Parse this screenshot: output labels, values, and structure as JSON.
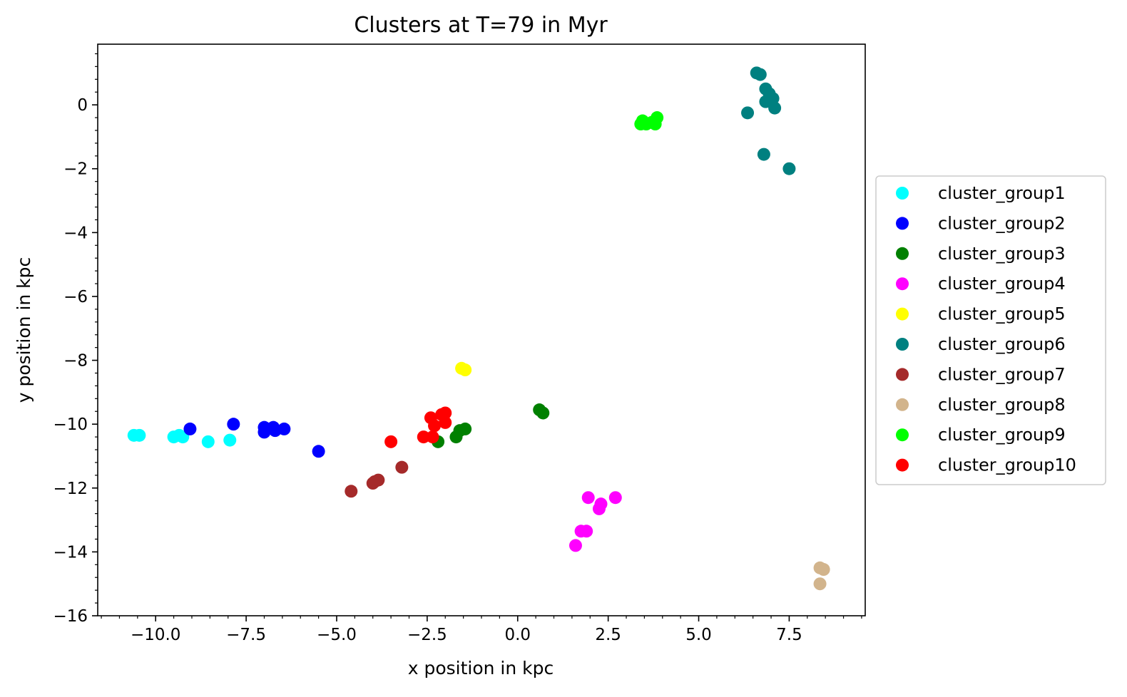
{
  "chart_data": {
    "type": "scatter",
    "title": "Clusters at T=79 in Myr",
    "xlabel": "x position in kpc",
    "ylabel": "y position in kpc",
    "xlim": [
      -11.6,
      9.6
    ],
    "ylim": [
      -16,
      1.9
    ],
    "x_ticks": [
      -10.0,
      -7.5,
      -5.0,
      -2.5,
      0.0,
      2.5,
      5.0,
      7.5
    ],
    "x_tick_labels": [
      "−10.0",
      "−7.5",
      "−5.0",
      "−2.5",
      "0.0",
      "2.5",
      "5.0",
      "7.5"
    ],
    "y_ticks": [
      0,
      -2,
      -4,
      -6,
      -8,
      -10,
      -12,
      -14,
      -16
    ],
    "y_tick_labels": [
      "0",
      "−2",
      "−4",
      "−6",
      "−8",
      "−10",
      "−12",
      "−14",
      "−16"
    ],
    "grid": false,
    "legend_position": "center right, outside plot",
    "series": [
      {
        "name": "cluster_group1",
        "color": "#00ffff",
        "points": [
          [
            -10.6,
            -10.35
          ],
          [
            -10.45,
            -10.35
          ],
          [
            -9.5,
            -10.4
          ],
          [
            -9.35,
            -10.35
          ],
          [
            -9.25,
            -10.4
          ],
          [
            -8.55,
            -10.55
          ],
          [
            -7.95,
            -10.5
          ]
        ]
      },
      {
        "name": "cluster_group2",
        "color": "#0000ff",
        "points": [
          [
            -9.05,
            -10.15
          ],
          [
            -7.85,
            -10.0
          ],
          [
            -7.0,
            -10.1
          ],
          [
            -7.0,
            -10.25
          ],
          [
            -6.75,
            -10.1
          ],
          [
            -6.7,
            -10.2
          ],
          [
            -6.45,
            -10.15
          ],
          [
            -5.5,
            -10.85
          ]
        ]
      },
      {
        "name": "cluster_group3",
        "color": "#008000",
        "points": [
          [
            -2.2,
            -10.55
          ],
          [
            -1.7,
            -10.4
          ],
          [
            -1.6,
            -10.2
          ],
          [
            -1.45,
            -10.15
          ],
          [
            0.6,
            -9.55
          ],
          [
            0.7,
            -9.65
          ]
        ]
      },
      {
        "name": "cluster_group4",
        "color": "#ff00ff",
        "points": [
          [
            1.95,
            -12.3
          ],
          [
            2.7,
            -12.3
          ],
          [
            2.3,
            -12.5
          ],
          [
            2.25,
            -12.65
          ],
          [
            1.9,
            -13.35
          ],
          [
            1.75,
            -13.35
          ],
          [
            1.6,
            -13.8
          ]
        ]
      },
      {
        "name": "cluster_group5",
        "color": "#ffff00",
        "points": [
          [
            -1.55,
            -8.25
          ],
          [
            -1.45,
            -8.3
          ]
        ]
      },
      {
        "name": "cluster_group6",
        "color": "#008080",
        "points": [
          [
            6.6,
            1.0
          ],
          [
            6.7,
            0.95
          ],
          [
            6.85,
            0.5
          ],
          [
            6.95,
            0.35
          ],
          [
            7.05,
            0.2
          ],
          [
            6.85,
            0.1
          ],
          [
            7.1,
            -0.1
          ],
          [
            6.35,
            -0.25
          ],
          [
            6.8,
            -1.55
          ],
          [
            7.5,
            -2.0
          ]
        ]
      },
      {
        "name": "cluster_group7",
        "color": "#a52a2a",
        "points": [
          [
            -4.6,
            -12.1
          ],
          [
            -4.0,
            -11.85
          ],
          [
            -3.95,
            -11.8
          ],
          [
            -3.85,
            -11.75
          ],
          [
            -3.2,
            -11.35
          ]
        ]
      },
      {
        "name": "cluster_group8",
        "color": "#d2b48c",
        "points": [
          [
            8.35,
            -14.5
          ],
          [
            8.45,
            -14.55
          ],
          [
            8.35,
            -15.0
          ]
        ]
      },
      {
        "name": "cluster_group9",
        "color": "#00ff00",
        "points": [
          [
            3.45,
            -0.5
          ],
          [
            3.55,
            -0.6
          ],
          [
            3.7,
            -0.55
          ],
          [
            3.85,
            -0.4
          ],
          [
            3.8,
            -0.6
          ],
          [
            3.4,
            -0.6
          ]
        ]
      },
      {
        "name": "cluster_group10",
        "color": "#ff0000",
        "points": [
          [
            -2.6,
            -10.4
          ],
          [
            -2.4,
            -9.8
          ],
          [
            -2.3,
            -10.05
          ],
          [
            -2.35,
            -10.4
          ],
          [
            -2.1,
            -9.7
          ],
          [
            -2.0,
            -9.65
          ],
          [
            -2.0,
            -9.95
          ],
          [
            -3.5,
            -10.55
          ]
        ]
      }
    ]
  }
}
